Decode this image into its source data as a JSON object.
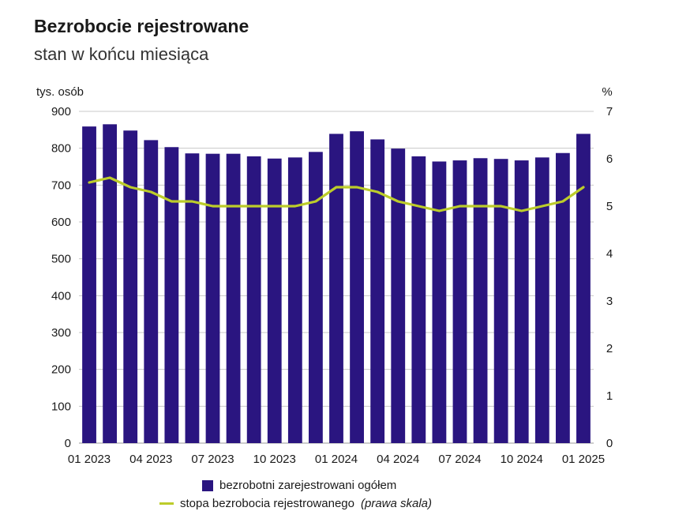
{
  "title": "Bezrobocie rejestrowane",
  "subtitle": "stan w końcu miesiąca",
  "colors": {
    "bars": "#2a1580",
    "line": "#bccc2a",
    "grid": "#c8c8c8"
  },
  "legend": {
    "bars_label": "bezrobotni zarejestrowani ogółem",
    "line_label": "stopa bezrobocia rejestrowanego",
    "line_note": "(prawa skala)"
  },
  "chart_data": {
    "type": "bar",
    "title": "Bezrobocie rejestrowane",
    "subtitle": "stan w końcu miesiąca",
    "ylabel_left": "tys. osób",
    "ylabel_right": "%",
    "ylim_left": [
      0,
      900
    ],
    "ylim_right": [
      0,
      7
    ],
    "yticks_left": [
      "0",
      "100",
      "200",
      "300",
      "400",
      "500",
      "600",
      "700",
      "800",
      "900"
    ],
    "yticks_right": [
      "0",
      "1",
      "2",
      "3",
      "4",
      "5",
      "6",
      "7"
    ],
    "grid": true,
    "legend_position": "bottom",
    "x_tick_labels": [
      {
        "index": 0,
        "label": "01 2023"
      },
      {
        "index": 3,
        "label": "04 2023"
      },
      {
        "index": 6,
        "label": "07 2023"
      },
      {
        "index": 9,
        "label": "10 2023"
      },
      {
        "index": 12,
        "label": "01 2024"
      },
      {
        "index": 15,
        "label": "04 2024"
      },
      {
        "index": 18,
        "label": "07 2024"
      },
      {
        "index": 21,
        "label": "10 2024"
      },
      {
        "index": 24,
        "label": "01 2025"
      }
    ],
    "categories": [
      "01 2023",
      "02 2023",
      "03 2023",
      "04 2023",
      "05 2023",
      "06 2023",
      "07 2023",
      "08 2023",
      "09 2023",
      "10 2023",
      "11 2023",
      "12 2023",
      "01 2024",
      "02 2024",
      "03 2024",
      "04 2024",
      "05 2024",
      "06 2024",
      "07 2024",
      "08 2024",
      "09 2024",
      "10 2024",
      "11 2024",
      "12 2024",
      "01 2025"
    ],
    "series": [
      {
        "name": "bezrobotni zarejestrowani ogółem",
        "axis": "left",
        "type": "bar",
        "values": [
          859,
          865,
          848,
          822,
          803,
          786,
          785,
          785,
          778,
          772,
          775,
          790,
          839,
          846,
          824,
          799,
          778,
          764,
          767,
          773,
          771,
          767,
          775,
          787,
          839
        ]
      },
      {
        "name": "stopa bezrobocia rejestrowanego (prawa skala)",
        "axis": "right",
        "type": "line",
        "values": [
          5.5,
          5.6,
          5.4,
          5.3,
          5.1,
          5.1,
          5.0,
          5.0,
          5.0,
          5.0,
          5.0,
          5.1,
          5.4,
          5.4,
          5.3,
          5.1,
          5.0,
          4.9,
          5.0,
          5.0,
          5.0,
          4.9,
          5.0,
          5.1,
          5.4
        ]
      }
    ]
  }
}
